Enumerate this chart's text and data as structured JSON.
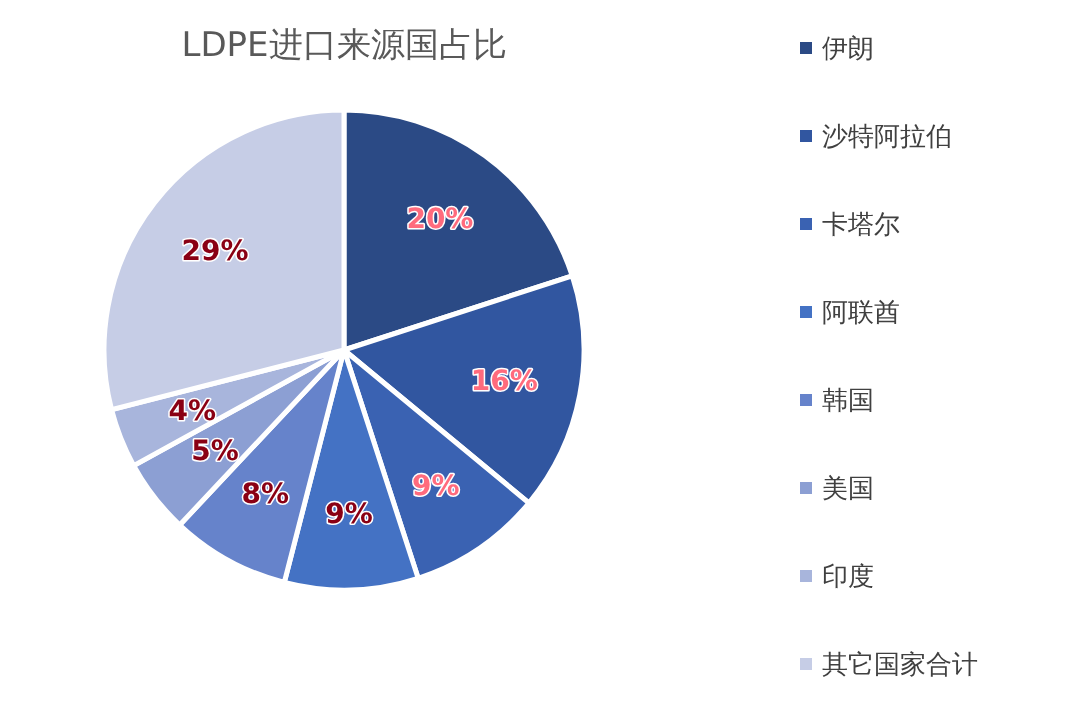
{
  "chart_data": {
    "type": "pie",
    "title": "LDPE进口来源国占比",
    "categories": [
      "伊朗",
      "沙特阿拉伯",
      "卡塔尔",
      "阿联酋",
      "韩国",
      "美国",
      "印度",
      "其它国家合计"
    ],
    "values": [
      20,
      16,
      9,
      9,
      8,
      5,
      4,
      29
    ],
    "colors": [
      "#2b4a85",
      "#3156a0",
      "#3a62b2",
      "#4472c4",
      "#6683cb",
      "#8c9fd3",
      "#a8b5dc",
      "#c6cde6"
    ],
    "value_labels": [
      "20%",
      "16%",
      "9%",
      "9%",
      "8%",
      "5%",
      "4%",
      "29%"
    ],
    "legend": "right"
  }
}
